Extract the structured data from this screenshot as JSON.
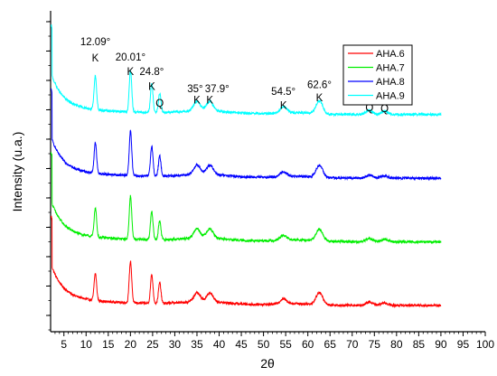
{
  "chart_data": {
    "type": "line",
    "xlabel": "2θ",
    "ylabel": "Intensity (u.a.)",
    "xlim": [
      2,
      100
    ],
    "xticks": [
      5,
      10,
      15,
      20,
      25,
      30,
      35,
      40,
      45,
      50,
      55,
      60,
      65,
      70,
      75,
      80,
      85,
      90,
      95,
      100
    ],
    "y_ticks_labeled": false,
    "grid": false,
    "legend_position": "top-right",
    "series": [
      {
        "name": "AHA.6",
        "color": "#ff0000",
        "baseline": 0.0,
        "peaks": [
          [
            12.09,
            0.34
          ],
          [
            20.01,
            0.52
          ],
          [
            24.8,
            0.36
          ],
          [
            26.6,
            0.26
          ],
          [
            35.0,
            0.11
          ],
          [
            37.9,
            0.11
          ],
          [
            54.5,
            0.06
          ],
          [
            62.6,
            0.15
          ],
          [
            73.9,
            0.04
          ],
          [
            77.3,
            0.03
          ]
        ]
      },
      {
        "name": "AHA.7",
        "color": "#00ee00",
        "baseline": 0.8,
        "peaks": [
          [
            12.09,
            0.36
          ],
          [
            20.01,
            0.54
          ],
          [
            24.8,
            0.36
          ],
          [
            26.6,
            0.24
          ],
          [
            35.0,
            0.12
          ],
          [
            37.9,
            0.12
          ],
          [
            54.5,
            0.06
          ],
          [
            62.6,
            0.15
          ],
          [
            73.9,
            0.04
          ],
          [
            77.3,
            0.03
          ]
        ]
      },
      {
        "name": "AHA.8",
        "color": "#0000ff",
        "baseline": 1.6,
        "peaks": [
          [
            12.09,
            0.38
          ],
          [
            20.01,
            0.56
          ],
          [
            24.8,
            0.38
          ],
          [
            26.6,
            0.25
          ],
          [
            35.0,
            0.12
          ],
          [
            37.9,
            0.12
          ],
          [
            54.5,
            0.06
          ],
          [
            62.6,
            0.15
          ],
          [
            73.9,
            0.04
          ],
          [
            77.3,
            0.03
          ]
        ]
      },
      {
        "name": "AHA.9",
        "color": "#00ffff",
        "baseline": 2.4,
        "peaks": [
          [
            12.09,
            0.42
          ],
          [
            20.01,
            0.52
          ],
          [
            24.8,
            0.36
          ],
          [
            26.6,
            0.24
          ],
          [
            35.0,
            0.12
          ],
          [
            37.9,
            0.12
          ],
          [
            54.5,
            0.08
          ],
          [
            62.6,
            0.16
          ],
          [
            73.9,
            0.05
          ],
          [
            77.3,
            0.04
          ]
        ]
      }
    ],
    "annotations": [
      {
        "text": "12.09°",
        "x": 12.09,
        "y": 3.35
      },
      {
        "text": "K",
        "x": 12.09,
        "y": 3.15
      },
      {
        "text": "20.01°",
        "x": 20.01,
        "y": 3.16
      },
      {
        "text": "K",
        "x": 20.01,
        "y": 2.98
      },
      {
        "text": "24.8°",
        "x": 24.8,
        "y": 2.98
      },
      {
        "text": "K",
        "x": 24.8,
        "y": 2.79
      },
      {
        "text": "Q",
        "x": 26.6,
        "y": 2.58
      },
      {
        "text": "35°",
        "x": 35.0,
        "y": 2.76
      },
      {
        "text": "37.9°",
        "x": 37.9,
        "y": 2.76
      },
      {
        "text": "K",
        "x": 35.0,
        "y": 2.62
      },
      {
        "text": "K",
        "x": 37.9,
        "y": 2.62
      },
      {
        "text": "54.5°",
        "x": 54.5,
        "y": 2.73
      },
      {
        "text": "K",
        "x": 54.5,
        "y": 2.55
      },
      {
        "text": "62.6°",
        "x": 62.6,
        "y": 2.81
      },
      {
        "text": "K",
        "x": 62.6,
        "y": 2.65
      },
      {
        "text": "Q",
        "x": 73.9,
        "y": 2.52
      },
      {
        "text": "Q",
        "x": 77.3,
        "y": 2.51
      }
    ]
  }
}
